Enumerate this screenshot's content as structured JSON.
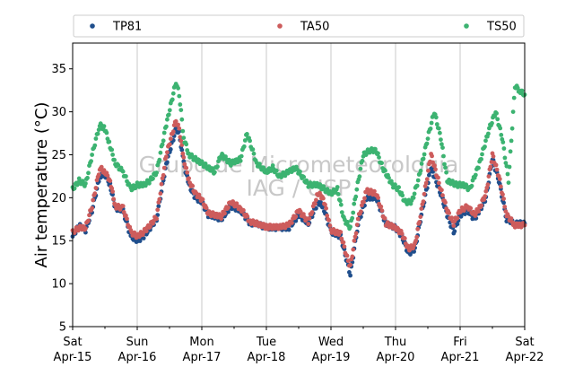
{
  "chart_data": {
    "type": "scatter",
    "title": "",
    "xlabel": "",
    "ylabel": "Air temperature (°C)",
    "xlim": [
      0,
      7
    ],
    "ylim": [
      5,
      38
    ],
    "yticks": [
      5,
      10,
      15,
      20,
      25,
      30,
      35
    ],
    "xticks": [
      {
        "x": 0,
        "day": "Sat",
        "date": "Apr-15"
      },
      {
        "x": 1,
        "day": "Sun",
        "date": "Apr-16"
      },
      {
        "x": 2,
        "day": "Mon",
        "date": "Apr-17"
      },
      {
        "x": 3,
        "day": "Tue",
        "date": "Apr-18"
      },
      {
        "x": 4,
        "day": "Wed",
        "date": "Apr-19"
      },
      {
        "x": 5,
        "day": "Thu",
        "date": "Apr-20"
      },
      {
        "x": 6,
        "day": "Fri",
        "date": "Apr-21"
      },
      {
        "x": 7,
        "day": "Sat",
        "date": "Apr-22"
      }
    ],
    "grid": "vertical",
    "legend": "top",
    "watermark": [
      "Grupo de Micrometeorologia",
      "IAG / USP"
    ],
    "series": [
      {
        "name": "TP81",
        "color": "#1f4e8c",
        "points": [
          [
            0,
            15.5
          ],
          [
            0.1,
            16.8
          ],
          [
            0.2,
            16.2
          ],
          [
            0.3,
            18.5
          ],
          [
            0.42,
            22.5
          ],
          [
            0.5,
            22.8
          ],
          [
            0.58,
            21.5
          ],
          [
            0.66,
            18.8
          ],
          [
            0.78,
            18.5
          ],
          [
            0.9,
            15.5
          ],
          [
            1.0,
            15.0
          ],
          [
            1.1,
            15.5
          ],
          [
            1.2,
            16.5
          ],
          [
            1.3,
            17.5
          ],
          [
            1.45,
            24.0
          ],
          [
            1.6,
            28.0
          ],
          [
            1.65,
            27.5
          ],
          [
            1.72,
            24.0
          ],
          [
            1.8,
            21.5
          ],
          [
            1.9,
            20.0
          ],
          [
            2.0,
            19.5
          ],
          [
            2.1,
            18.0
          ],
          [
            2.2,
            17.8
          ],
          [
            2.3,
            17.5
          ],
          [
            2.45,
            19.0
          ],
          [
            2.6,
            18.5
          ],
          [
            2.75,
            17.0
          ],
          [
            2.85,
            17.0
          ],
          [
            3.0,
            16.5
          ],
          [
            3.2,
            16.5
          ],
          [
            3.35,
            16.5
          ],
          [
            3.5,
            18.0
          ],
          [
            3.65,
            17.0
          ],
          [
            3.8,
            19.5
          ],
          [
            3.88,
            19.0
          ],
          [
            4.0,
            16.0
          ],
          [
            4.15,
            15.5
          ],
          [
            4.25,
            12.5
          ],
          [
            4.3,
            11.0
          ],
          [
            4.42,
            17.0
          ],
          [
            4.55,
            20.0
          ],
          [
            4.7,
            20.0
          ],
          [
            4.85,
            17.0
          ],
          [
            5.0,
            16.5
          ],
          [
            5.1,
            15.5
          ],
          [
            5.2,
            13.5
          ],
          [
            5.3,
            14.0
          ],
          [
            5.4,
            18.0
          ],
          [
            5.55,
            23.5
          ],
          [
            5.7,
            20.5
          ],
          [
            5.8,
            18.0
          ],
          [
            5.9,
            16.0
          ],
          [
            6.0,
            18.0
          ],
          [
            6.12,
            18.5
          ],
          [
            6.22,
            17.5
          ],
          [
            6.3,
            18.5
          ],
          [
            6.4,
            20.0
          ],
          [
            6.5,
            24.5
          ],
          [
            6.6,
            22.0
          ],
          [
            6.72,
            17.5
          ],
          [
            6.85,
            17.0
          ],
          [
            7.0,
            17.0
          ]
        ]
      },
      {
        "name": "TA50",
        "color": "#cd5c5c",
        "points": [
          [
            0,
            16.0
          ],
          [
            0.1,
            16.5
          ],
          [
            0.2,
            16.5
          ],
          [
            0.3,
            19.0
          ],
          [
            0.42,
            23.5
          ],
          [
            0.5,
            23.0
          ],
          [
            0.58,
            22.0
          ],
          [
            0.66,
            19.0
          ],
          [
            0.78,
            18.8
          ],
          [
            0.9,
            16.0
          ],
          [
            1.0,
            15.5
          ],
          [
            1.1,
            16.0
          ],
          [
            1.2,
            16.8
          ],
          [
            1.3,
            17.8
          ],
          [
            1.45,
            25.0
          ],
          [
            1.6,
            29.0
          ],
          [
            1.65,
            28.0
          ],
          [
            1.72,
            24.5
          ],
          [
            1.8,
            22.0
          ],
          [
            1.9,
            20.5
          ],
          [
            2.0,
            19.8
          ],
          [
            2.1,
            18.2
          ],
          [
            2.2,
            18.0
          ],
          [
            2.3,
            17.8
          ],
          [
            2.45,
            19.5
          ],
          [
            2.6,
            18.8
          ],
          [
            2.75,
            17.2
          ],
          [
            2.85,
            17.0
          ],
          [
            3.0,
            16.6
          ],
          [
            3.2,
            16.6
          ],
          [
            3.35,
            16.8
          ],
          [
            3.5,
            18.5
          ],
          [
            3.65,
            17.2
          ],
          [
            3.8,
            20.5
          ],
          [
            3.88,
            20.0
          ],
          [
            4.0,
            16.2
          ],
          [
            4.15,
            15.8
          ],
          [
            4.25,
            13.0
          ],
          [
            4.3,
            12.0
          ],
          [
            4.42,
            17.5
          ],
          [
            4.55,
            20.8
          ],
          [
            4.7,
            20.5
          ],
          [
            4.85,
            17.0
          ],
          [
            5.0,
            16.5
          ],
          [
            5.1,
            15.8
          ],
          [
            5.2,
            14.0
          ],
          [
            5.3,
            14.5
          ],
          [
            5.4,
            18.5
          ],
          [
            5.55,
            25.0
          ],
          [
            5.7,
            21.0
          ],
          [
            5.8,
            18.5
          ],
          [
            5.9,
            17.0
          ],
          [
            6.0,
            18.5
          ],
          [
            6.12,
            19.0
          ],
          [
            6.22,
            18.0
          ],
          [
            6.3,
            18.8
          ],
          [
            6.4,
            20.5
          ],
          [
            6.5,
            25.0
          ],
          [
            6.6,
            22.5
          ],
          [
            6.72,
            18.0
          ],
          [
            6.85,
            16.8
          ],
          [
            7.0,
            16.8
          ]
        ]
      },
      {
        "name": "TS50",
        "color": "#3cb371",
        "points": [
          [
            0,
            21.0
          ],
          [
            0.1,
            22.0
          ],
          [
            0.2,
            21.5
          ],
          [
            0.3,
            25.0
          ],
          [
            0.42,
            28.5
          ],
          [
            0.5,
            28.0
          ],
          [
            0.58,
            26.0
          ],
          [
            0.66,
            24.0
          ],
          [
            0.78,
            23.0
          ],
          [
            0.9,
            21.0
          ],
          [
            1.0,
            21.5
          ],
          [
            1.1,
            21.5
          ],
          [
            1.2,
            22.0
          ],
          [
            1.3,
            23.0
          ],
          [
            1.45,
            28.5
          ],
          [
            1.6,
            33.5
          ],
          [
            1.65,
            32.0
          ],
          [
            1.72,
            27.0
          ],
          [
            1.8,
            25.0
          ],
          [
            1.9,
            24.5
          ],
          [
            2.0,
            24.0
          ],
          [
            2.1,
            23.5
          ],
          [
            2.2,
            23.0
          ],
          [
            2.3,
            25.0
          ],
          [
            2.45,
            24.0
          ],
          [
            2.6,
            24.5
          ],
          [
            2.7,
            27.5
          ],
          [
            2.85,
            24.0
          ],
          [
            3.0,
            23.0
          ],
          [
            3.1,
            23.5
          ],
          [
            3.2,
            22.5
          ],
          [
            3.35,
            23.0
          ],
          [
            3.45,
            23.5
          ],
          [
            3.55,
            22.5
          ],
          [
            3.65,
            21.5
          ],
          [
            3.8,
            21.5
          ],
          [
            3.9,
            21.0
          ],
          [
            4.0,
            20.5
          ],
          [
            4.1,
            21.0
          ],
          [
            4.2,
            17.5
          ],
          [
            4.3,
            16.5
          ],
          [
            4.4,
            21.0
          ],
          [
            4.5,
            25.0
          ],
          [
            4.6,
            25.5
          ],
          [
            4.7,
            25.5
          ],
          [
            4.8,
            23.5
          ],
          [
            4.95,
            21.5
          ],
          [
            5.05,
            21.0
          ],
          [
            5.15,
            19.5
          ],
          [
            5.25,
            19.5
          ],
          [
            5.35,
            22.0
          ],
          [
            5.5,
            27.0
          ],
          [
            5.6,
            30.0
          ],
          [
            5.7,
            27.0
          ],
          [
            5.8,
            22.0
          ],
          [
            5.95,
            21.5
          ],
          [
            6.05,
            21.5
          ],
          [
            6.15,
            21.0
          ],
          [
            6.3,
            24.0
          ],
          [
            6.45,
            28.0
          ],
          [
            6.55,
            30.0
          ],
          [
            6.65,
            27.0
          ],
          [
            6.75,
            22.0
          ],
          [
            6.85,
            33.0
          ],
          [
            6.92,
            32.5
          ],
          [
            7.0,
            32.0
          ]
        ]
      }
    ]
  }
}
